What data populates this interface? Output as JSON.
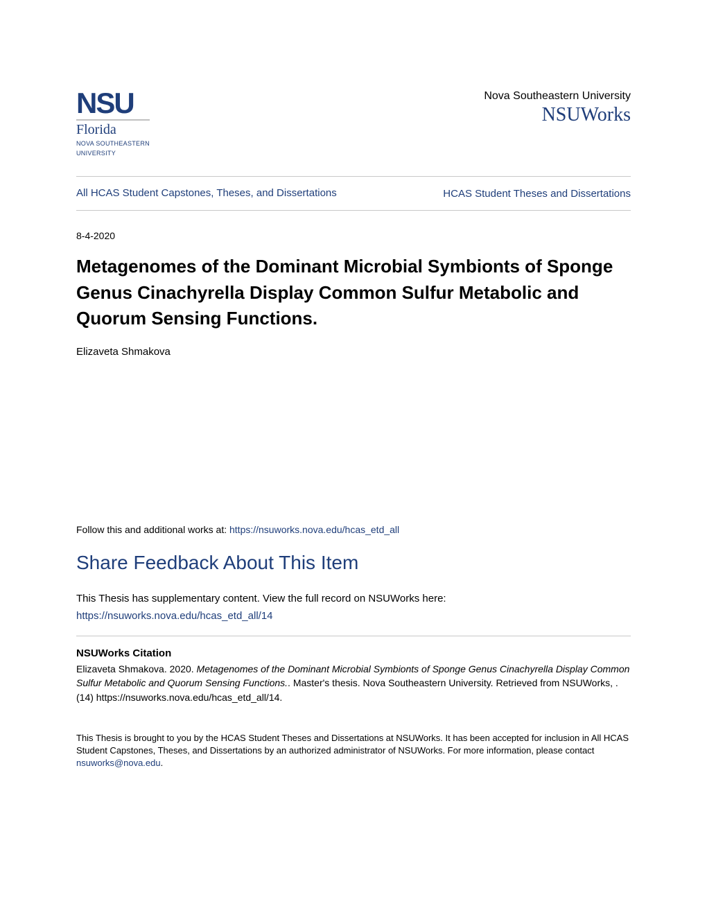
{
  "header": {
    "logo": {
      "main": "NSU",
      "florida": "Florida",
      "sub1": "NOVA SOUTHEASTERN",
      "sub2": "UNIVERSITY"
    },
    "university": "Nova Southeastern University",
    "repository": "NSUWorks"
  },
  "nav": {
    "left": "All HCAS Student Capstones, Theses, and Dissertations",
    "right": "HCAS Student Theses and Dissertations"
  },
  "date": "8-4-2020",
  "title": "Metagenomes of the Dominant Microbial Symbionts of Sponge Genus Cinachyrella Display Common Sulfur Metabolic and Quorum Sensing Functions.",
  "author": "Elizaveta Shmakova",
  "follow": {
    "prefix": "Follow this and additional works at: ",
    "link": "https://nsuworks.nova.edu/hcas_etd_all"
  },
  "feedback_heading": "Share Feedback About This Item",
  "supplementary": {
    "text": "This Thesis has supplementary content. View the full record on NSUWorks here:",
    "link": "https://nsuworks.nova.edu/hcas_etd_all/14"
  },
  "citation": {
    "heading": "NSUWorks Citation",
    "author_year": "Elizaveta Shmakova. 2020. ",
    "title_italic": "Metagenomes of the Dominant Microbial Symbionts of Sponge Genus Cinachyrella Display Common Sulfur Metabolic and Quorum Sensing Functions.",
    "tail": ". Master's thesis. Nova Southeastern University. Retrieved from NSUWorks, . (14) https://nsuworks.nova.edu/hcas_etd_all/14."
  },
  "footer": {
    "text_start": "This Thesis is brought to you by the HCAS Student Theses and Dissertations at NSUWorks. It has been accepted for inclusion in All HCAS Student Capstones, Theses, and Dissertations by an authorized administrator of NSUWorks. For more information, please contact ",
    "email": "nsuworks@nova.edu",
    "text_end": "."
  },
  "colors": {
    "link": "#1f3e7a",
    "text": "#000000",
    "rule": "#c8c8c8"
  }
}
